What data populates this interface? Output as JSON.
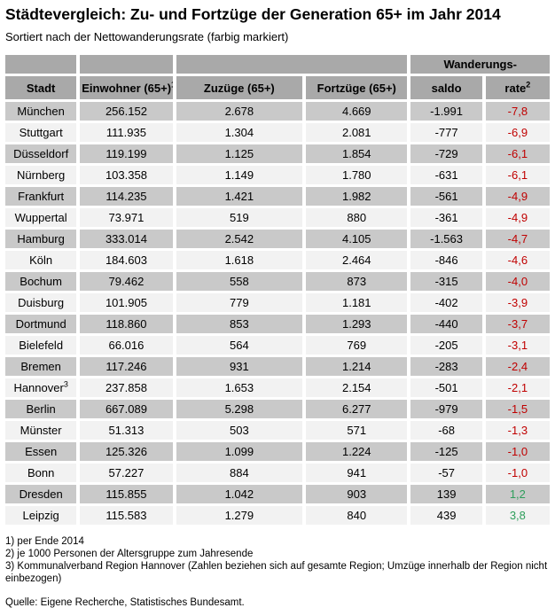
{
  "title": "Städtevergleich: Zu- und Fortzüge der Generation 65+ im Jahr 2014",
  "subtitle": "Sortiert nach der Nettowanderungsrate (farbig markiert)",
  "colors": {
    "header_bg": "#a9a9a9",
    "row_dark_bg": "#c9c9c9",
    "row_light_bg": "#f2f2f2",
    "rate_negative": "#c00000",
    "rate_positive": "#2e9e5b"
  },
  "table": {
    "group_header": "Wanderungs-",
    "columns": [
      {
        "label": "Stadt",
        "sup": ""
      },
      {
        "label": "Einwohner (65+)",
        "sup": "1"
      },
      {
        "label": "Zuzüge (65+)",
        "sup": ""
      },
      {
        "label": "Fortzüge (65+)",
        "sup": ""
      },
      {
        "label": "saldo",
        "sup": ""
      },
      {
        "label": "rate",
        "sup": "2"
      }
    ],
    "rows": [
      {
        "stadt": "München",
        "stadt_sup": "",
        "einwohner": "256.152",
        "zuzuege": "2.678",
        "fortzuege": "4.669",
        "saldo": "-1.991",
        "rate": "-7,8"
      },
      {
        "stadt": "Stuttgart",
        "stadt_sup": "",
        "einwohner": "111.935",
        "zuzuege": "1.304",
        "fortzuege": "2.081",
        "saldo": "-777",
        "rate": "-6,9"
      },
      {
        "stadt": "Düsseldorf",
        "stadt_sup": "",
        "einwohner": "119.199",
        "zuzuege": "1.125",
        "fortzuege": "1.854",
        "saldo": "-729",
        "rate": "-6,1"
      },
      {
        "stadt": "Nürnberg",
        "stadt_sup": "",
        "einwohner": "103.358",
        "zuzuege": "1.149",
        "fortzuege": "1.780",
        "saldo": "-631",
        "rate": "-6,1"
      },
      {
        "stadt": "Frankfurt",
        "stadt_sup": "",
        "einwohner": "114.235",
        "zuzuege": "1.421",
        "fortzuege": "1.982",
        "saldo": "-561",
        "rate": "-4,9"
      },
      {
        "stadt": "Wuppertal",
        "stadt_sup": "",
        "einwohner": "73.971",
        "zuzuege": "519",
        "fortzuege": "880",
        "saldo": "-361",
        "rate": "-4,9"
      },
      {
        "stadt": "Hamburg",
        "stadt_sup": "",
        "einwohner": "333.014",
        "zuzuege": "2.542",
        "fortzuege": "4.105",
        "saldo": "-1.563",
        "rate": "-4,7"
      },
      {
        "stadt": "Köln",
        "stadt_sup": "",
        "einwohner": "184.603",
        "zuzuege": "1.618",
        "fortzuege": "2.464",
        "saldo": "-846",
        "rate": "-4,6"
      },
      {
        "stadt": "Bochum",
        "stadt_sup": "",
        "einwohner": "79.462",
        "zuzuege": "558",
        "fortzuege": "873",
        "saldo": "-315",
        "rate": "-4,0"
      },
      {
        "stadt": "Duisburg",
        "stadt_sup": "",
        "einwohner": "101.905",
        "zuzuege": "779",
        "fortzuege": "1.181",
        "saldo": "-402",
        "rate": "-3,9"
      },
      {
        "stadt": "Dortmund",
        "stadt_sup": "",
        "einwohner": "118.860",
        "zuzuege": "853",
        "fortzuege": "1.293",
        "saldo": "-440",
        "rate": "-3,7"
      },
      {
        "stadt": "Bielefeld",
        "stadt_sup": "",
        "einwohner": "66.016",
        "zuzuege": "564",
        "fortzuege": "769",
        "saldo": "-205",
        "rate": "-3,1"
      },
      {
        "stadt": "Bremen",
        "stadt_sup": "",
        "einwohner": "117.246",
        "zuzuege": "931",
        "fortzuege": "1.214",
        "saldo": "-283",
        "rate": "-2,4"
      },
      {
        "stadt": "Hannover",
        "stadt_sup": "3",
        "einwohner": "237.858",
        "zuzuege": "1.653",
        "fortzuege": "2.154",
        "saldo": "-501",
        "rate": "-2,1"
      },
      {
        "stadt": "Berlin",
        "stadt_sup": "",
        "einwohner": "667.089",
        "zuzuege": "5.298",
        "fortzuege": "6.277",
        "saldo": "-979",
        "rate": "-1,5"
      },
      {
        "stadt": "Münster",
        "stadt_sup": "",
        "einwohner": "51.313",
        "zuzuege": "503",
        "fortzuege": "571",
        "saldo": "-68",
        "rate": "-1,3"
      },
      {
        "stadt": "Essen",
        "stadt_sup": "",
        "einwohner": "125.326",
        "zuzuege": "1.099",
        "fortzuege": "1.224",
        "saldo": "-125",
        "rate": "-1,0"
      },
      {
        "stadt": "Bonn",
        "stadt_sup": "",
        "einwohner": "57.227",
        "zuzuege": "884",
        "fortzuege": "941",
        "saldo": "-57",
        "rate": "-1,0"
      },
      {
        "stadt": "Dresden",
        "stadt_sup": "",
        "einwohner": "115.855",
        "zuzuege": "1.042",
        "fortzuege": "903",
        "saldo": "139",
        "rate": "1,2"
      },
      {
        "stadt": "Leipzig",
        "stadt_sup": "",
        "einwohner": "115.583",
        "zuzuege": "1.279",
        "fortzuege": "840",
        "saldo": "439",
        "rate": "3,8"
      }
    ]
  },
  "footnotes": [
    "1) per Ende 2014",
    "2) je 1000 Personen der Altersgruppe zum Jahresende",
    "3) Kommunalverband Region Hannover (Zahlen beziehen sich auf gesamte Region; Umzüge innerhalb der Region nicht einbezogen)"
  ],
  "source": "Quelle: Eigene Recherche, Statistisches Bundesamt.",
  "chart_data": {
    "type": "table",
    "title": "Städtevergleich: Zu- und Fortzüge der Generation 65+ im Jahr 2014",
    "subtitle": "Sortiert nach der Nettowanderungsrate (farbig markiert)",
    "columns": [
      "Stadt",
      "Einwohner (65+)",
      "Zuzüge (65+)",
      "Fortzüge (65+)",
      "Wanderungssaldo",
      "Wanderungsrate"
    ],
    "rows": [
      [
        "München",
        256152,
        2678,
        4669,
        -1991,
        -7.8
      ],
      [
        "Stuttgart",
        111935,
        1304,
        2081,
        -777,
        -6.9
      ],
      [
        "Düsseldorf",
        119199,
        1125,
        1854,
        -729,
        -6.1
      ],
      [
        "Nürnberg",
        103358,
        1149,
        1780,
        -631,
        -6.1
      ],
      [
        "Frankfurt",
        114235,
        1421,
        1982,
        -561,
        -4.9
      ],
      [
        "Wuppertal",
        73971,
        519,
        880,
        -361,
        -4.9
      ],
      [
        "Hamburg",
        333014,
        2542,
        4105,
        -1563,
        -4.7
      ],
      [
        "Köln",
        184603,
        1618,
        2464,
        -846,
        -4.6
      ],
      [
        "Bochum",
        79462,
        558,
        873,
        -315,
        -4.0
      ],
      [
        "Duisburg",
        101905,
        779,
        1181,
        -402,
        -3.9
      ],
      [
        "Dortmund",
        118860,
        853,
        1293,
        -440,
        -3.7
      ],
      [
        "Bielefeld",
        66016,
        564,
        769,
        -205,
        -3.1
      ],
      [
        "Bremen",
        117246,
        931,
        1214,
        -283,
        -2.4
      ],
      [
        "Hannover",
        237858,
        1653,
        2154,
        -501,
        -2.1
      ],
      [
        "Berlin",
        667089,
        5298,
        6277,
        -979,
        -1.5
      ],
      [
        "Münster",
        51313,
        503,
        571,
        -68,
        -1.3
      ],
      [
        "Essen",
        125326,
        1099,
        1224,
        -125,
        -1.0
      ],
      [
        "Bonn",
        57227,
        884,
        941,
        -57,
        -1.0
      ],
      [
        "Dresden",
        115855,
        1042,
        903,
        139,
        1.2
      ],
      [
        "Leipzig",
        115583,
        1279,
        840,
        439,
        3.8
      ]
    ],
    "notes": [
      "1) per Ende 2014",
      "2) je 1000 Personen der Altersgruppe zum Jahresende",
      "3) Kommunalverband Region Hannover (Zahlen beziehen sich auf gesamte Region; Umzüge innerhalb der Region nicht einbezogen)"
    ],
    "source": "Quelle: Eigene Recherche, Statistisches Bundesamt."
  }
}
